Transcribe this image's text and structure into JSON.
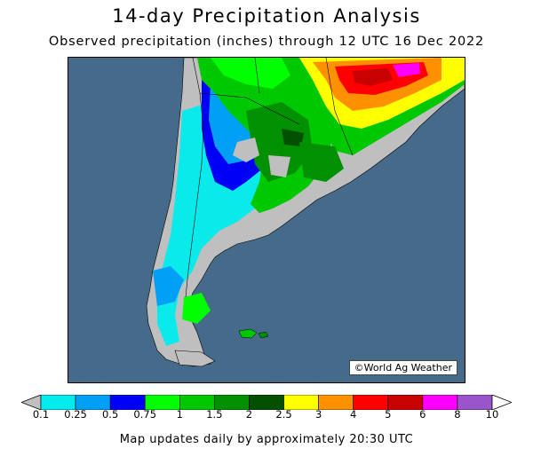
{
  "title": "14-day Precipitation Analysis",
  "subtitle": "Observed precipitation (inches) through 12 UTC 16 Dec 2022",
  "credit": "©World Ag Weather",
  "footer": "Map updates daily by approximately 20:30 UTC",
  "legend": {
    "ticks": [
      "0.1",
      "0.25",
      "0.5",
      "0.75",
      "1",
      "1.5",
      "2",
      "2.5",
      "3",
      "4",
      "5",
      "6",
      "8",
      "10"
    ],
    "colors": [
      "#00ecec",
      "#01a0f6",
      "#0000f6",
      "#00ff00",
      "#00c800",
      "#009000",
      "#005000",
      "#ffff00",
      "#ff9000",
      "#ff0000",
      "#c80000",
      "#ff00ff",
      "#9955c9"
    ],
    "below_color": "#bfbfbf",
    "above_color": "#ffffff"
  },
  "map": {
    "ocean_color": "#466a8a",
    "land_dry_color": "#bfbfbf"
  }
}
